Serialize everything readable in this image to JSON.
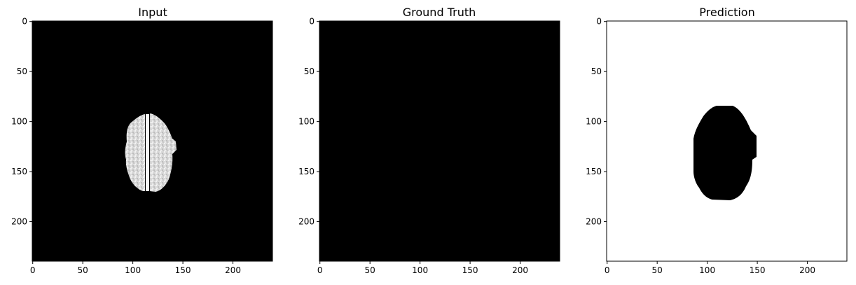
{
  "figure": {
    "panels": [
      {
        "id": "input",
        "title": "Input",
        "background": "#000000",
        "content": "brain-scan-slice",
        "x_ticks": [
          "0",
          "50",
          "100",
          "150",
          "200"
        ],
        "y_ticks": [
          "0",
          "50",
          "100",
          "150",
          "200"
        ]
      },
      {
        "id": "ground-truth",
        "title": "Ground Truth",
        "background": "#000000",
        "content": "empty-mask",
        "x_ticks": [
          "0",
          "50",
          "100",
          "150",
          "200"
        ],
        "y_ticks": [
          "0",
          "50",
          "100",
          "150",
          "200"
        ]
      },
      {
        "id": "prediction",
        "title": "Prediction",
        "background": "#ffffff",
        "content": "predicted-mask",
        "x_ticks": [
          "0",
          "50",
          "100",
          "150",
          "200"
        ],
        "y_ticks": [
          "0",
          "50",
          "100",
          "150",
          "200"
        ]
      }
    ],
    "image_size": 240,
    "tick_values": [
      0,
      50,
      100,
      150,
      200
    ]
  }
}
